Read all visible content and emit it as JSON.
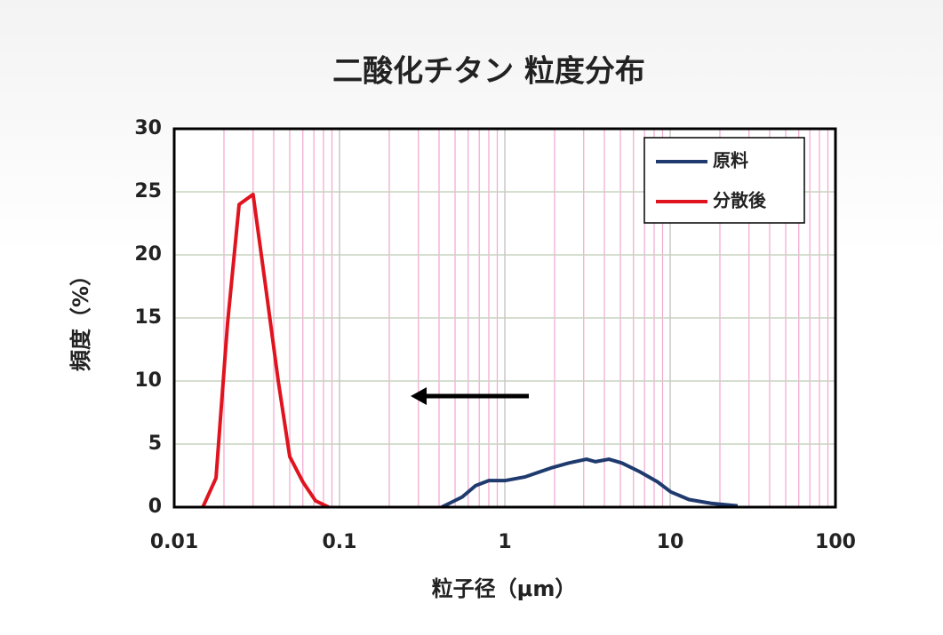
{
  "chart_data": {
    "type": "line",
    "title": "二酸化チタン 粒度分布",
    "x_label": "粒子径（μm）",
    "y_label": "頻度（%）",
    "xscale": "log",
    "xlim": [
      0.01,
      100
    ],
    "xticks": [
      0.01,
      0.1,
      1,
      10,
      100
    ],
    "ylim": [
      0,
      30
    ],
    "yticks": [
      0,
      5,
      10,
      15,
      20,
      25,
      30
    ],
    "grid": true,
    "minor_grid": true,
    "legend": "upper right",
    "series": [
      {
        "name": "原料",
        "color": "#1f3a6e",
        "x": [
          0.415,
          0.552,
          0.665,
          0.8,
          1.0,
          1.33,
          1.9,
          2.44,
          3.12,
          3.53,
          4.26,
          5.1,
          6.56,
          8.4,
          10.1,
          13,
          17.7,
          25.6
        ],
        "values": [
          0,
          0.8,
          1.7,
          2.1,
          2.1,
          2.4,
          3.1,
          3.5,
          3.8,
          3.6,
          3.8,
          3.5,
          2.8,
          2.0,
          1.2,
          0.6,
          0.3,
          0.1
        ]
      },
      {
        "name": "分散後",
        "color": "#e0141e",
        "x": [
          0.0149,
          0.0179,
          0.021,
          0.0247,
          0.03,
          0.0353,
          0.0426,
          0.05,
          0.06,
          0.0716,
          0.086
        ],
        "values": [
          0,
          2.3,
          14.5,
          24,
          24.8,
          18,
          10,
          4,
          2,
          0.5,
          0
        ]
      }
    ]
  }
}
